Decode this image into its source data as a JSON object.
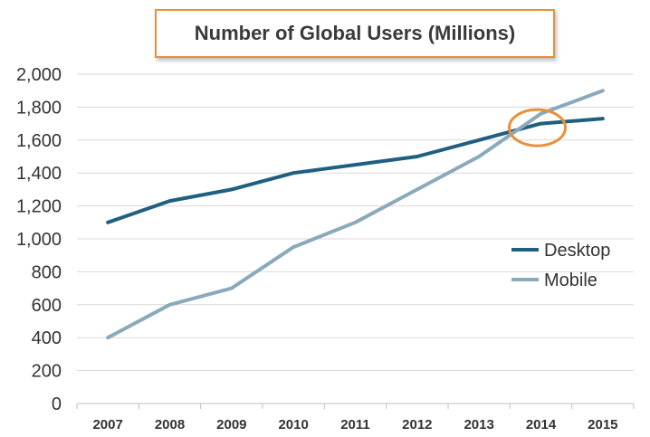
{
  "chart_data": {
    "type": "line",
    "title": "Number of Global Users (Millions)",
    "xlabel": "",
    "ylabel": "",
    "categories": [
      "2007",
      "2008",
      "2009",
      "2010",
      "2011",
      "2012",
      "2013",
      "2014",
      "2015"
    ],
    "ylim": [
      0,
      2000
    ],
    "yticks": [
      "0",
      "200",
      "400",
      "600",
      "800",
      "1,000",
      "1,200",
      "1,400",
      "1,600",
      "1,800",
      "2,000"
    ],
    "grid": true,
    "legend": "right",
    "series": [
      {
        "name": "Desktop",
        "color": "#1f5f80",
        "values": [
          1100,
          1230,
          1300,
          1400,
          1450,
          1500,
          1600,
          1700,
          1730
        ]
      },
      {
        "name": "Mobile",
        "color": "#8aaabb",
        "values": [
          400,
          600,
          700,
          950,
          1100,
          1300,
          1500,
          1760,
          1900
        ]
      }
    ],
    "annotation": {
      "type": "circle",
      "color": "#e8913a",
      "x": "2014",
      "y": 1675
    }
  }
}
